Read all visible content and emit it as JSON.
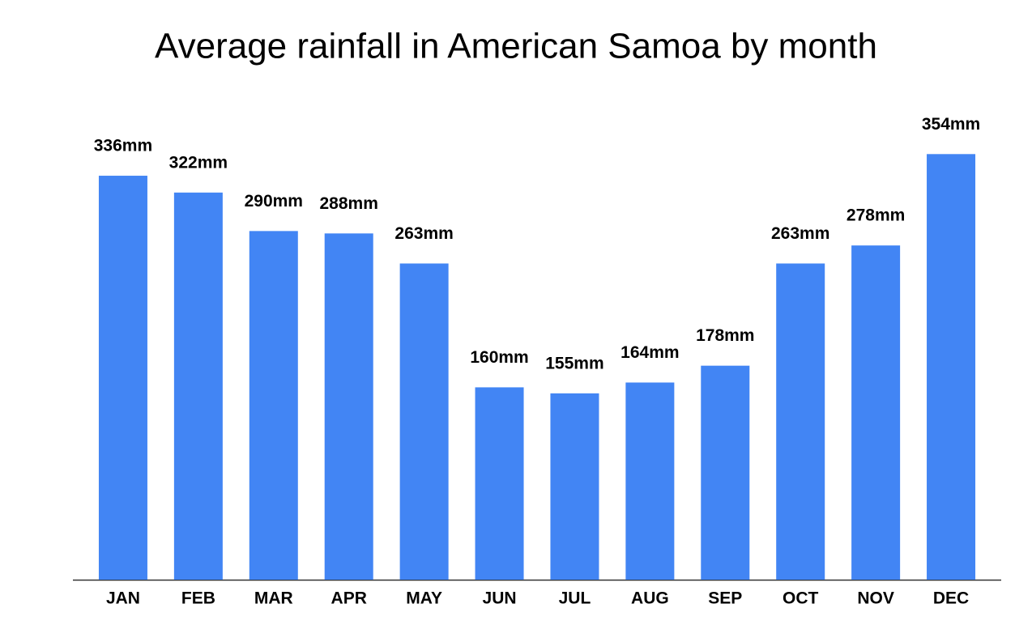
{
  "chart_data": {
    "type": "bar",
    "title": "Average rainfall in American Samoa by month",
    "categories": [
      "JAN",
      "FEB",
      "MAR",
      "APR",
      "MAY",
      "JUN",
      "JUL",
      "AUG",
      "SEP",
      "OCT",
      "NOV",
      "DEC"
    ],
    "values": [
      336,
      322,
      290,
      288,
      263,
      160,
      155,
      164,
      178,
      263,
      278,
      354
    ],
    "value_labels": [
      "336mm",
      "322mm",
      "290mm",
      "288mm",
      "263mm",
      "160mm",
      "155mm",
      "164mm",
      "178mm",
      "263mm",
      "278mm",
      "354mm"
    ],
    "color": "#4285f4",
    "ylim": [
      0,
      400
    ]
  }
}
